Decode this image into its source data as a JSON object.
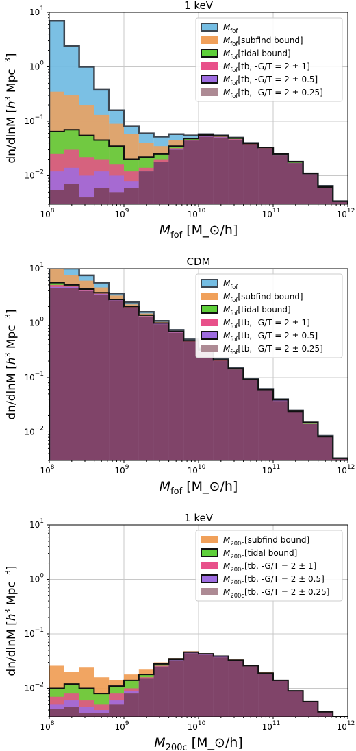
{
  "styles": {
    "colors": {
      "mfof": "#74bde3",
      "subfind": "#f0a05a",
      "tidal": "#5ecf3a",
      "tb1": "#e8508a",
      "tb05": "#9e6ce0",
      "tb025": "#ad8a94",
      "overlap_fill": "#7b3d64",
      "tidal_dark": "#b8481c"
    }
  },
  "chart_data": [
    {
      "type": "area",
      "title": "1 keV",
      "xlabel": "M_fof [M_⊙/h]",
      "ylabel": "dn/dlnM [h^3 Mpc^-3]",
      "xscale": "log",
      "yscale": "log",
      "xlim": [
        100000000.0,
        1000000000000.0
      ],
      "ylim": [
        0.003,
        10
      ],
      "grid": true,
      "legend_position": "top-right",
      "x_tick_labels": [
        "10^8",
        "10^9",
        "10^10",
        "10^11",
        "10^12"
      ],
      "y_tick_labels": [
        "10^-2",
        "10^-1",
        "10^0",
        "10^1"
      ],
      "bin_edges_log10": [
        8.0,
        8.2,
        8.4,
        8.6,
        8.8,
        9.0,
        9.2,
        9.4,
        9.6,
        9.8,
        10.0,
        10.2,
        10.4,
        10.6,
        10.8,
        11.0,
        11.2,
        11.4,
        11.6,
        11.8,
        12.0
      ],
      "series": [
        {
          "name": "M_fof",
          "color_key": "mfof",
          "values": [
            7.0,
            2.4,
            1.0,
            0.38,
            0.16,
            0.08,
            0.06,
            0.052,
            0.058,
            0.055,
            0.058,
            0.055,
            0.05,
            0.04,
            0.033,
            0.025,
            0.018,
            0.011,
            0.0065,
            0.0034
          ]
        },
        {
          "name": "M_fof[subfind bound]",
          "color_key": "subfind",
          "values": [
            0.35,
            0.3,
            0.2,
            0.13,
            0.09,
            0.058,
            0.04,
            0.035,
            0.045,
            0.05,
            0.058,
            0.055,
            0.05,
            0.04,
            0.033,
            0.025,
            0.018,
            0.011,
            0.0065,
            0.0034
          ]
        },
        {
          "name": "M_fof[tidal bound]",
          "color_key": "tidal",
          "values": [
            0.065,
            0.07,
            0.055,
            0.045,
            0.035,
            0.02,
            0.022,
            0.025,
            0.035,
            0.048,
            0.056,
            0.054,
            0.049,
            0.039,
            0.033,
            0.025,
            0.018,
            0.011,
            0.0062,
            0.0034
          ]
        },
        {
          "name": "M_fof[tb, -G/T = 2 ± 1]",
          "color_key": "tb1",
          "values": [
            0.025,
            0.03,
            0.022,
            0.02,
            0.016,
            0.012,
            0.014,
            0.02,
            0.032,
            0.045,
            0.054,
            0.052,
            0.047,
            0.038,
            0.032,
            0.024,
            0.017,
            0.011,
            0.006,
            0.0034
          ]
        },
        {
          "name": "M_fof[tb, -G/T = 2 ± 0.5]",
          "color_key": "tb05",
          "values": [
            0.012,
            0.014,
            0.01,
            0.012,
            0.01,
            0.008,
            0.012,
            0.018,
            0.031,
            0.044,
            0.053,
            0.051,
            0.046,
            0.037,
            0.031,
            0.024,
            0.017,
            0.011,
            0.006,
            0.0034
          ]
        },
        {
          "name": "M_fof[tb, -G/T = 2 ± 0.25]",
          "color_key": "tb025",
          "values": [
            0.0055,
            0.007,
            0.004,
            0.006,
            0.005,
            0.006,
            0.012,
            0.018,
            0.03,
            0.044,
            0.052,
            0.05,
            0.045,
            0.037,
            0.031,
            0.024,
            0.017,
            0.011,
            0.006,
            0.0034
          ]
        }
      ]
    },
    {
      "type": "area",
      "title": "CDM",
      "xlabel": "M_fof [M_⊙/h]",
      "ylabel": "dn/dlnM [h^3 Mpc^-3]",
      "xscale": "log",
      "yscale": "log",
      "xlim": [
        100000000.0,
        1000000000000.0
      ],
      "ylim": [
        0.003,
        10
      ],
      "grid": true,
      "legend_position": "top-right",
      "x_tick_labels": [
        "10^8",
        "10^9",
        "10^10",
        "10^11",
        "10^12"
      ],
      "y_tick_labels": [
        "10^-2",
        "10^-1",
        "10^0",
        "10^1"
      ],
      "bin_edges_log10": [
        8.0,
        8.2,
        8.4,
        8.6,
        8.8,
        9.0,
        9.2,
        9.4,
        9.6,
        9.8,
        10.0,
        10.2,
        10.4,
        10.6,
        10.8,
        11.0,
        11.2,
        11.4,
        11.6,
        11.8,
        12.0
      ],
      "series": [
        {
          "name": "M_fof",
          "color_key": "mfof",
          "values": [
            13,
            10,
            7.5,
            5.5,
            3.5,
            2.4,
            1.6,
            1.1,
            0.75,
            0.5,
            0.34,
            0.22,
            0.15,
            0.095,
            0.062,
            0.04,
            0.025,
            0.015,
            0.0085,
            0.0033
          ]
        },
        {
          "name": "M_fof[subfind bound]",
          "color_key": "subfind",
          "values": [
            10,
            7.5,
            6,
            4.5,
            3.2,
            2.2,
            1.5,
            1.05,
            0.72,
            0.48,
            0.33,
            0.22,
            0.15,
            0.095,
            0.062,
            0.04,
            0.025,
            0.015,
            0.0085,
            0.0033
          ]
        },
        {
          "name": "M_fof[tidal bound]",
          "color_key": "tidal",
          "values": [
            5.5,
            5,
            4.2,
            3.6,
            2.7,
            2.0,
            1.4,
            1.0,
            0.7,
            0.47,
            0.32,
            0.21,
            0.145,
            0.092,
            0.06,
            0.039,
            0.024,
            0.015,
            0.0082,
            0.0033
          ]
        },
        {
          "name": "M_fof[tb, -G/T = 2 ± 1]",
          "color_key": "tb1",
          "values": [
            5.0,
            4.8,
            4.1,
            3.5,
            2.65,
            1.95,
            1.35,
            0.98,
            0.68,
            0.46,
            0.31,
            0.21,
            0.14,
            0.09,
            0.059,
            0.038,
            0.024,
            0.014,
            0.008,
            0.0033
          ]
        },
        {
          "name": "M_fof[tb, -G/T = 2 ± 0.5]",
          "color_key": "tb05",
          "values": [
            4.6,
            4.6,
            4.0,
            3.4,
            2.6,
            1.9,
            1.33,
            0.97,
            0.67,
            0.45,
            0.31,
            0.2,
            0.14,
            0.09,
            0.058,
            0.038,
            0.024,
            0.014,
            0.008,
            0.0033
          ]
        },
        {
          "name": "M_fof[tb, -G/T = 2 ± 0.25]",
          "color_key": "tb025",
          "values": [
            4.4,
            4.4,
            3.9,
            3.3,
            2.55,
            1.9,
            1.3,
            0.95,
            0.66,
            0.45,
            0.3,
            0.2,
            0.14,
            0.09,
            0.058,
            0.037,
            0.024,
            0.014,
            0.008,
            0.0033
          ]
        }
      ]
    },
    {
      "type": "area",
      "title": "1 keV",
      "xlabel": "M_200c [M_⊙/h]",
      "ylabel": "dn/dlnM [h^3 Mpc^-3]",
      "xscale": "log",
      "yscale": "log",
      "xlim": [
        100000000.0,
        1000000000000.0
      ],
      "ylim": [
        0.003,
        10
      ],
      "grid": true,
      "legend_position": "top-right",
      "x_tick_labels": [
        "10^8",
        "10^9",
        "10^10",
        "10^11",
        "10^12"
      ],
      "y_tick_labels": [
        "10^-2",
        "10^-1",
        "10^0",
        "10^1"
      ],
      "bin_edges_log10": [
        8.0,
        8.2,
        8.4,
        8.6,
        8.8,
        9.0,
        9.2,
        9.4,
        9.6,
        9.8,
        10.0,
        10.2,
        10.4,
        10.6,
        10.8,
        11.0,
        11.2,
        11.4,
        11.6,
        11.8,
        12.0
      ],
      "series": [
        {
          "name": "M_200c[subfind bound]",
          "color_key": "subfind",
          "values": [
            0.026,
            0.02,
            0.024,
            0.016,
            0.014,
            0.018,
            0.022,
            0.03,
            0.035,
            0.048,
            0.044,
            0.04,
            0.034,
            0.027,
            0.02,
            0.014,
            0.009,
            0.0058,
            0.0038,
            0.003
          ]
        },
        {
          "name": "M_200c[tidal bound]",
          "color_key": "tidal",
          "values": [
            0.01,
            0.012,
            0.01,
            0.008,
            0.011,
            0.014,
            0.018,
            0.028,
            0.034,
            0.046,
            0.043,
            0.039,
            0.033,
            0.026,
            0.019,
            0.014,
            0.009,
            0.0057,
            0.0037,
            0.003
          ]
        },
        {
          "name": "M_200c[tb, -G/T = 2 ± 1]",
          "color_key": "tb1",
          "values": [
            0.007,
            0.008,
            0.006,
            0.005,
            0.008,
            0.01,
            0.016,
            0.026,
            0.033,
            0.045,
            0.042,
            0.038,
            0.032,
            0.026,
            0.019,
            0.014,
            0.009,
            0.0057,
            0.0037,
            0.003
          ]
        },
        {
          "name": "M_200c[tb, -G/T = 2 ± 0.5]",
          "color_key": "tb05",
          "values": [
            0.005,
            0.006,
            0.0045,
            0.004,
            0.006,
            0.009,
            0.015,
            0.025,
            0.033,
            0.045,
            0.042,
            0.038,
            0.032,
            0.025,
            0.019,
            0.014,
            0.009,
            0.0056,
            0.0037,
            0.003
          ]
        },
        {
          "name": "M_200c[tb, -G/T = 2 ± 0.25]",
          "color_key": "tb025",
          "values": [
            0.0042,
            0.0045,
            0.0035,
            0.0035,
            0.005,
            0.008,
            0.015,
            0.025,
            0.032,
            0.044,
            0.041,
            0.037,
            0.032,
            0.025,
            0.019,
            0.014,
            0.009,
            0.0056,
            0.0037,
            0.003
          ]
        }
      ]
    }
  ]
}
